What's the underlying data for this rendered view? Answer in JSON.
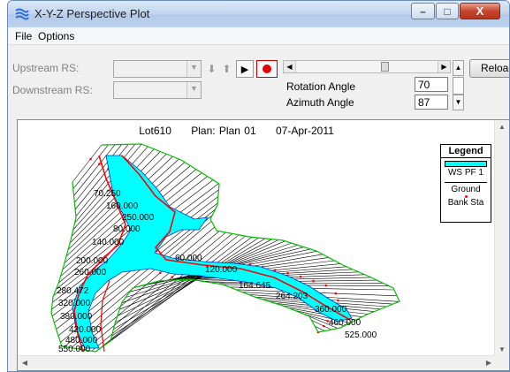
{
  "window": {
    "title": "X-Y-Z Perspective Plot",
    "minimize_glyph": "–",
    "maximize_glyph": "□",
    "close_glyph": "X"
  },
  "menu": {
    "file": "File",
    "options": "Options"
  },
  "toolbar": {
    "upstream_label": "Upstream RS:",
    "downstream_label": "Downstream RS:",
    "upstream_value": "",
    "downstream_value": "",
    "move_down_glyph": "⬇",
    "move_up_glyph": "⬆",
    "play_glyph": "▶",
    "rotation_label": "Rotation Angle",
    "rotation_value": "70",
    "azimuth_label": "Azimuth Angle",
    "azimuth_value": "87",
    "reload_label": "Reload"
  },
  "plot": {
    "project": "Lot610",
    "plan": "Plan: Plan 01",
    "date": "07-Apr-2011",
    "legend": {
      "title": "Legend",
      "items": [
        "WS PF 1",
        "Ground",
        "Bank Sta"
      ]
    },
    "colors": {
      "water_surface": "#00ffff",
      "ground": "#000000",
      "bank": "#ff0000",
      "boundary": "#00c000"
    },
    "station_labels": [
      "70.250",
      "160.000",
      "250.000",
      "80.000",
      "140.000",
      "200.000",
      "260.000",
      "280.472",
      "320.000",
      "380.000",
      "420.000",
      "480.000",
      "550.000",
      "60.000",
      "120.000",
      "164.645",
      "264.203",
      "360.000",
      "460.000",
      "525.000"
    ]
  }
}
